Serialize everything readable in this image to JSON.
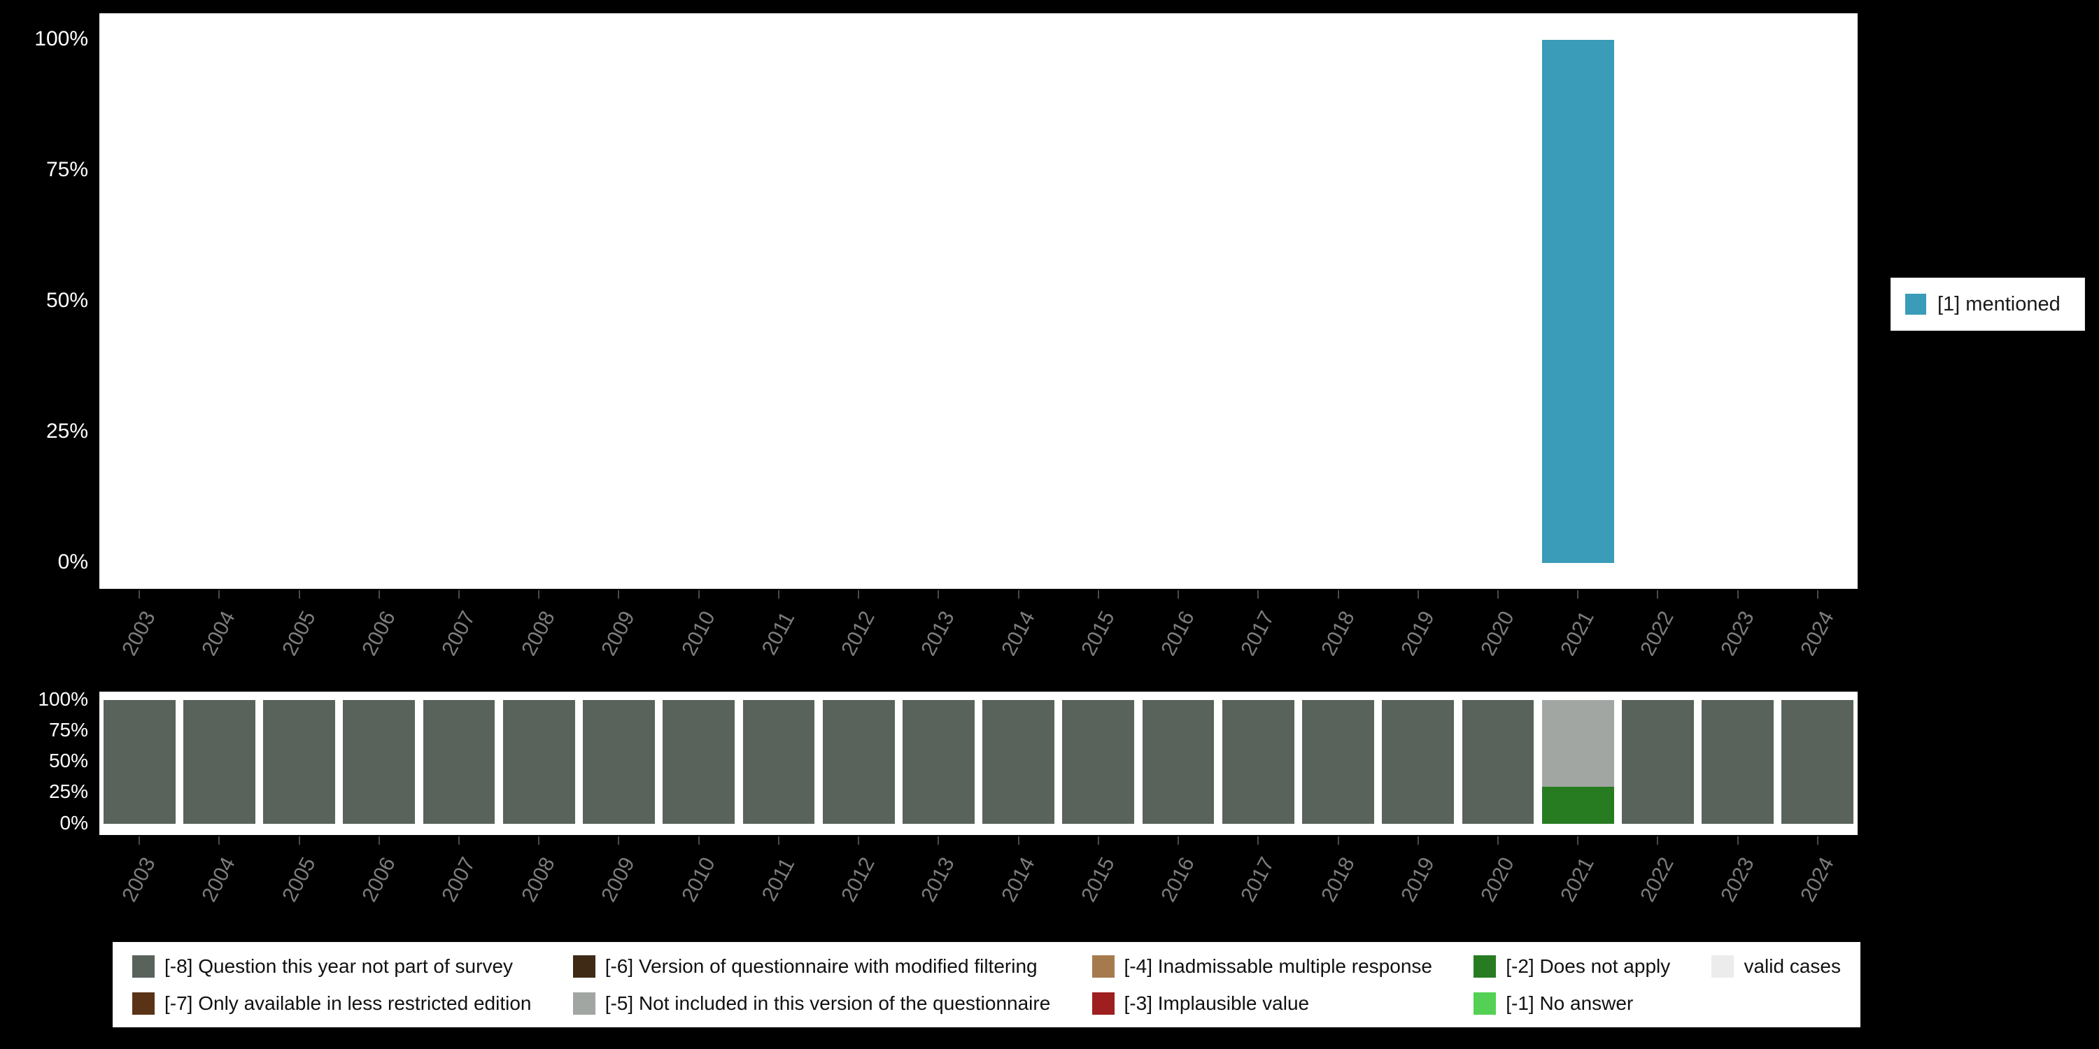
{
  "colors": {
    "background": "#000000",
    "panel": "#ffffff",
    "axis_text": "#ffffff",
    "year_text": "#7d7d7d",
    "mentioned": "#3a9cb8",
    "m8": "#59625b",
    "m7": "#5a3317",
    "m6": "#3e2a15",
    "m5": "#a2a6a2",
    "m4": "#a57b4e",
    "m3": "#9e1f1f",
    "m2": "#277c21",
    "m1": "#54d154",
    "valid": "#ececec"
  },
  "years": [
    "2003",
    "2004",
    "2005",
    "2006",
    "2007",
    "2008",
    "2009",
    "2010",
    "2011",
    "2012",
    "2013",
    "2014",
    "2015",
    "2016",
    "2017",
    "2018",
    "2019",
    "2020",
    "2021",
    "2022",
    "2023",
    "2024"
  ],
  "y_ticks": [
    "0%",
    "25%",
    "50%",
    "75%",
    "100%"
  ],
  "top_legend": {
    "items": [
      {
        "label": "[1] mentioned",
        "color": "#3a9cb8"
      }
    ]
  },
  "bottom_legend": {
    "items": [
      {
        "label": "[-8] Question this year not part of survey",
        "color": "#59625b"
      },
      {
        "label": "[-7] Only available in less restricted edition",
        "color": "#5a3317"
      },
      {
        "label": "[-6] Version of questionnaire with modified filtering",
        "color": "#3e2a15"
      },
      {
        "label": "[-5] Not included in this version of the questionnaire",
        "color": "#a2a6a2"
      },
      {
        "label": "[-4] Inadmissable multiple response",
        "color": "#a57b4e"
      },
      {
        "label": "[-3] Implausible value",
        "color": "#9e1f1f"
      },
      {
        "label": "[-2] Does not apply",
        "color": "#277c21"
      },
      {
        "label": "[-1] No answer",
        "color": "#54d154"
      },
      {
        "label": "valid cases",
        "color": "#ececec"
      }
    ]
  },
  "chart_data": [
    {
      "type": "bar",
      "title": "",
      "xlabel": "",
      "ylabel": "",
      "ylim": [
        0,
        100
      ],
      "y_tick_labels": [
        "0%",
        "25%",
        "50%",
        "75%",
        "100%"
      ],
      "legend_position": "right",
      "grid": false,
      "categories": [
        "2003",
        "2004",
        "2005",
        "2006",
        "2007",
        "2008",
        "2009",
        "2010",
        "2011",
        "2012",
        "2013",
        "2014",
        "2015",
        "2016",
        "2017",
        "2018",
        "2019",
        "2020",
        "2021",
        "2022",
        "2023",
        "2024"
      ],
      "series": [
        {
          "name": "[1] mentioned",
          "color": "#3a9cb8",
          "values": [
            0,
            0,
            0,
            0,
            0,
            0,
            0,
            0,
            0,
            0,
            0,
            0,
            0,
            0,
            0,
            0,
            0,
            0,
            100,
            0,
            0,
            0
          ]
        }
      ]
    },
    {
      "type": "bar",
      "stacked": true,
      "title": "",
      "xlabel": "",
      "ylabel": "",
      "ylim": [
        0,
        100
      ],
      "y_tick_labels": [
        "0%",
        "25%",
        "50%",
        "75%",
        "100%"
      ],
      "legend_position": "bottom",
      "grid": false,
      "categories": [
        "2003",
        "2004",
        "2005",
        "2006",
        "2007",
        "2008",
        "2009",
        "2010",
        "2011",
        "2012",
        "2013",
        "2014",
        "2015",
        "2016",
        "2017",
        "2018",
        "2019",
        "2020",
        "2021",
        "2022",
        "2023",
        "2024"
      ],
      "series": [
        {
          "name": "[-8] Question this year not part of survey",
          "color": "#59625b",
          "values": [
            100,
            100,
            100,
            100,
            100,
            100,
            100,
            100,
            100,
            100,
            100,
            100,
            100,
            100,
            100,
            100,
            100,
            100,
            0,
            100,
            100,
            100
          ]
        },
        {
          "name": "[-2] Does not apply",
          "color": "#277c21",
          "values": [
            0,
            0,
            0,
            0,
            0,
            0,
            0,
            0,
            0,
            0,
            0,
            0,
            0,
            0,
            0,
            0,
            0,
            0,
            30,
            0,
            0,
            0
          ]
        },
        {
          "name": "[-5] Not included in this version of the questionnaire",
          "color": "#a2a6a2",
          "values": [
            0,
            0,
            0,
            0,
            0,
            0,
            0,
            0,
            0,
            0,
            0,
            0,
            0,
            0,
            0,
            0,
            0,
            0,
            70,
            0,
            0,
            0
          ]
        }
      ]
    }
  ]
}
